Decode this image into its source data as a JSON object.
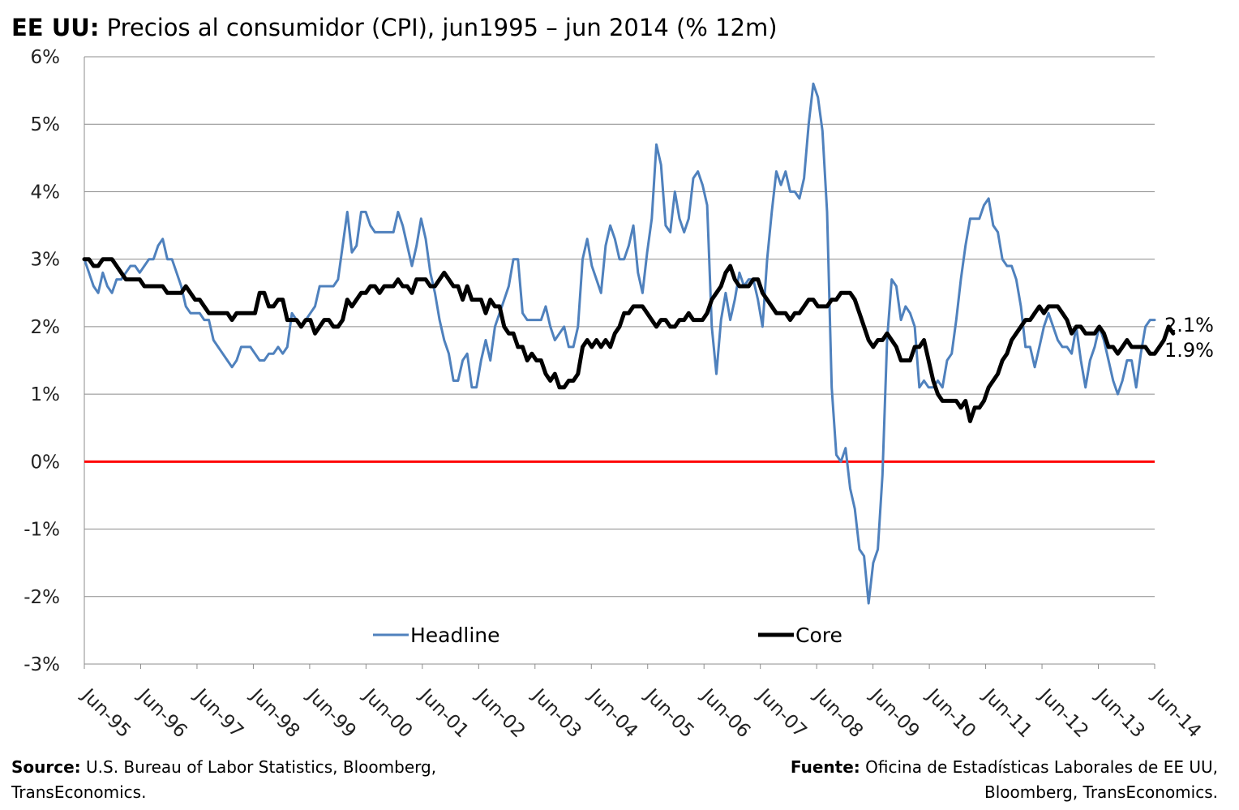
{
  "title": {
    "bold": "EE UU:",
    "rest": " Precios al consumidor (CPI), jun1995 – jun 2014 (% 12m)"
  },
  "source_left": {
    "label": "Source:",
    "text_line1": " U.S. Bureau of Labor Statistics, Bloomberg,",
    "text_line2": "TransEconomics."
  },
  "source_right": {
    "label": "Fuente:",
    "text_line1": " Oficina de Estadísticas Laborales de EE UU,",
    "text_line2": "Bloomberg, TransEconomics."
  },
  "chart_data": {
    "type": "line",
    "ylim": [
      -3,
      6
    ],
    "yticks": [
      -3,
      -2,
      -1,
      0,
      1,
      2,
      3,
      4,
      5,
      6
    ],
    "ytick_labels": [
      "-3%",
      "-2%",
      "-1%",
      "0%",
      "1%",
      "2%",
      "3%",
      "4%",
      "5%",
      "6%"
    ],
    "xtick_labels": [
      "Jun-95",
      "Jun-96",
      "Jun-97",
      "Jun-98",
      "Jun-99",
      "Jun-00",
      "Jun-01",
      "Jun-02",
      "Jun-03",
      "Jun-04",
      "Jun-05",
      "Jun-06",
      "Jun-07",
      "Jun-08",
      "Jun-09",
      "Jun-10",
      "Jun-11",
      "Jun-12",
      "Jun-13",
      "Jun-14"
    ],
    "x_start": "Jun-95",
    "x_end": "Jun-14",
    "grid": true,
    "zero_line_color": "#ff0000",
    "legend_position": "bottom inside plot",
    "series": [
      {
        "name": "Headline",
        "color": "#4f81bd",
        "end_label": "2.1%",
        "values": [
          3.0,
          2.8,
          2.6,
          2.5,
          2.8,
          2.6,
          2.5,
          2.7,
          2.7,
          2.8,
          2.9,
          2.9,
          2.8,
          2.9,
          3.0,
          3.0,
          3.2,
          3.3,
          3.0,
          3.0,
          2.8,
          2.6,
          2.3,
          2.2,
          2.2,
          2.2,
          2.1,
          2.1,
          1.8,
          1.7,
          1.6,
          1.5,
          1.4,
          1.5,
          1.7,
          1.7,
          1.7,
          1.6,
          1.5,
          1.5,
          1.6,
          1.6,
          1.7,
          1.6,
          1.7,
          2.2,
          2.1,
          2.0,
          2.1,
          2.2,
          2.3,
          2.6,
          2.6,
          2.6,
          2.6,
          2.7,
          3.2,
          3.7,
          3.1,
          3.2,
          3.7,
          3.7,
          3.5,
          3.4,
          3.4,
          3.4,
          3.4,
          3.4,
          3.7,
          3.5,
          3.2,
          2.9,
          3.2,
          3.6,
          3.3,
          2.8,
          2.5,
          2.1,
          1.8,
          1.6,
          1.2,
          1.2,
          1.5,
          1.6,
          1.1,
          1.1,
          1.5,
          1.8,
          1.5,
          2.0,
          2.2,
          2.4,
          2.6,
          3.0,
          3.0,
          2.2,
          2.1,
          2.1,
          2.1,
          2.1,
          2.3,
          2.0,
          1.8,
          1.9,
          2.0,
          1.7,
          1.7,
          2.0,
          3.0,
          3.3,
          2.9,
          2.7,
          2.5,
          3.2,
          3.5,
          3.3,
          3.0,
          3.0,
          3.2,
          3.5,
          2.8,
          2.5,
          3.1,
          3.6,
          4.7,
          4.4,
          3.5,
          3.4,
          4.0,
          3.6,
          3.4,
          3.6,
          4.2,
          4.3,
          4.1,
          3.8,
          2.0,
          1.3,
          2.1,
          2.5,
          2.1,
          2.4,
          2.8,
          2.6,
          2.7,
          2.7,
          2.4,
          2.0,
          3.0,
          3.7,
          4.3,
          4.1,
          4.3,
          4.0,
          4.0,
          3.9,
          4.2,
          5.0,
          5.6,
          5.4,
          4.9,
          3.7,
          1.1,
          0.1,
          0.0,
          0.2,
          -0.4,
          -0.7,
          -1.3,
          -1.4,
          -2.1,
          -1.5,
          -1.3,
          -0.2,
          1.8,
          2.7,
          2.6,
          2.1,
          2.3,
          2.2,
          2.0,
          1.1,
          1.2,
          1.1,
          1.1,
          1.2,
          1.1,
          1.5,
          1.6,
          2.1,
          2.7,
          3.2,
          3.6,
          3.6,
          3.6,
          3.8,
          3.9,
          3.5,
          3.4,
          3.0,
          2.9,
          2.9,
          2.7,
          2.3,
          1.7,
          1.7,
          1.4,
          1.7,
          2.0,
          2.2,
          2.0,
          1.8,
          1.7,
          1.7,
          1.6,
          2.0,
          1.5,
          1.1,
          1.5,
          1.7,
          2.0,
          1.8,
          1.5,
          1.2,
          1.0,
          1.2,
          1.5,
          1.5,
          1.1,
          1.6,
          2.0,
          2.1,
          2.1
        ]
      },
      {
        "name": "Core",
        "color": "#000000",
        "end_label": "1.9%",
        "values": [
          3.0,
          3.0,
          2.9,
          2.9,
          3.0,
          3.0,
          3.0,
          2.9,
          2.8,
          2.7,
          2.7,
          2.7,
          2.7,
          2.6,
          2.6,
          2.6,
          2.6,
          2.6,
          2.5,
          2.5,
          2.5,
          2.5,
          2.6,
          2.5,
          2.4,
          2.4,
          2.3,
          2.2,
          2.2,
          2.2,
          2.2,
          2.2,
          2.1,
          2.2,
          2.2,
          2.2,
          2.2,
          2.2,
          2.5,
          2.5,
          2.3,
          2.3,
          2.4,
          2.4,
          2.1,
          2.1,
          2.1,
          2.0,
          2.1,
          2.1,
          1.9,
          2.0,
          2.1,
          2.1,
          2.0,
          2.0,
          2.1,
          2.4,
          2.3,
          2.4,
          2.5,
          2.5,
          2.6,
          2.6,
          2.5,
          2.6,
          2.6,
          2.6,
          2.7,
          2.6,
          2.6,
          2.5,
          2.7,
          2.7,
          2.7,
          2.6,
          2.6,
          2.7,
          2.8,
          2.7,
          2.6,
          2.6,
          2.4,
          2.6,
          2.4,
          2.4,
          2.4,
          2.2,
          2.4,
          2.3,
          2.3,
          2.0,
          1.9,
          1.9,
          1.7,
          1.7,
          1.5,
          1.6,
          1.5,
          1.5,
          1.3,
          1.2,
          1.3,
          1.1,
          1.1,
          1.2,
          1.2,
          1.3,
          1.7,
          1.8,
          1.7,
          1.8,
          1.7,
          1.8,
          1.7,
          1.9,
          2.0,
          2.2,
          2.2,
          2.3,
          2.3,
          2.3,
          2.2,
          2.1,
          2.0,
          2.1,
          2.1,
          2.0,
          2.0,
          2.1,
          2.1,
          2.2,
          2.1,
          2.1,
          2.1,
          2.2,
          2.4,
          2.5,
          2.6,
          2.8,
          2.9,
          2.7,
          2.6,
          2.6,
          2.6,
          2.7,
          2.7,
          2.5,
          2.4,
          2.3,
          2.2,
          2.2,
          2.2,
          2.1,
          2.2,
          2.2,
          2.3,
          2.4,
          2.4,
          2.3,
          2.3,
          2.3,
          2.4,
          2.4,
          2.5,
          2.5,
          2.5,
          2.4,
          2.2,
          2.0,
          1.8,
          1.7,
          1.8,
          1.8,
          1.9,
          1.8,
          1.7,
          1.5,
          1.5,
          1.5,
          1.7,
          1.7,
          1.8,
          1.5,
          1.2,
          1.0,
          0.9,
          0.9,
          0.9,
          0.9,
          0.8,
          0.9,
          0.6,
          0.8,
          0.8,
          0.9,
          1.1,
          1.2,
          1.3,
          1.5,
          1.6,
          1.8,
          1.9,
          2.0,
          2.1,
          2.1,
          2.2,
          2.3,
          2.2,
          2.3,
          2.3,
          2.3,
          2.2,
          2.1,
          1.9,
          2.0,
          2.0,
          1.9,
          1.9,
          1.9,
          2.0,
          1.9,
          1.7,
          1.7,
          1.6,
          1.7,
          1.8,
          1.7,
          1.7,
          1.7,
          1.7,
          1.6,
          1.6,
          1.7,
          1.8,
          2.0,
          1.9
        ]
      }
    ]
  }
}
